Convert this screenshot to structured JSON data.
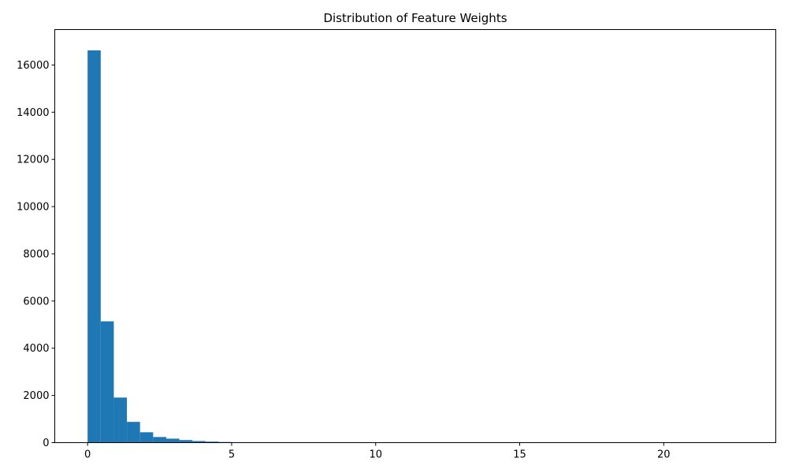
{
  "chart_data": {
    "type": "bar",
    "title": "Distribution of Feature Weights",
    "xlabel": "",
    "ylabel": "",
    "bar_color": "#1f77b4",
    "bin_width": 0.455,
    "bin_start": 0,
    "xlim": [
      -1.14,
      23.89
    ],
    "ylim": [
      0,
      17500
    ],
    "x_ticks": [
      0,
      5,
      10,
      15,
      20
    ],
    "y_ticks": [
      0,
      2000,
      4000,
      6000,
      8000,
      10000,
      12000,
      14000,
      16000
    ],
    "values": [
      16620,
      5140,
      1910,
      880,
      440,
      240,
      170,
      110,
      70,
      45,
      28,
      18,
      12,
      8,
      6,
      5,
      4,
      3,
      3,
      2,
      2,
      2,
      1,
      1,
      1,
      1,
      1,
      1,
      1,
      1,
      1,
      1,
      1,
      1,
      1,
      1,
      1,
      1,
      1,
      1,
      1,
      1,
      1,
      1,
      1,
      1,
      1,
      1,
      1,
      1
    ],
    "grid": false
  }
}
